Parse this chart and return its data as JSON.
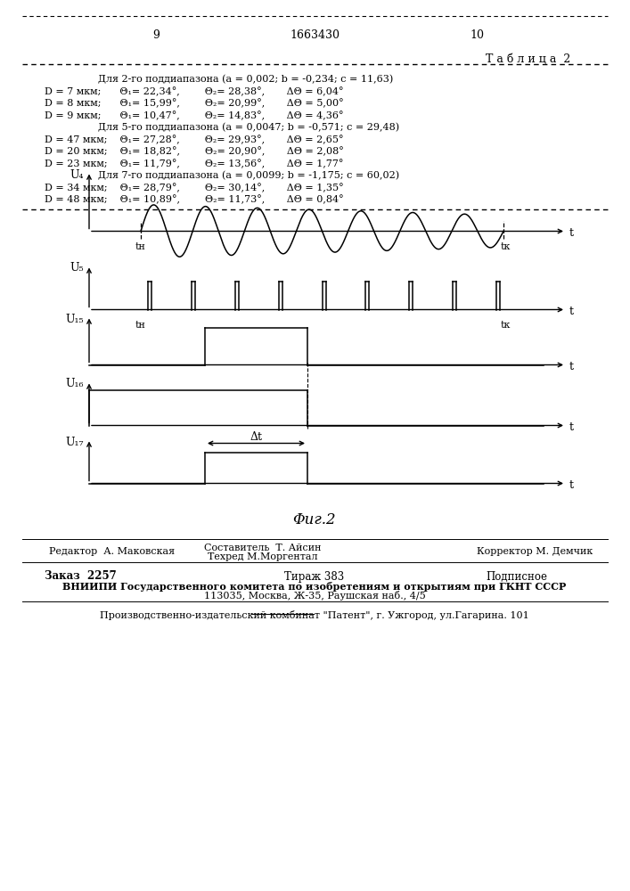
{
  "bg_color": "#ffffff",
  "text_color": "#000000",
  "page_num_left": "9",
  "page_center": "1663430",
  "page_num_right": "10",
  "table_title": "Т а б л и ц а  2",
  "table_lines": [
    "     Для 2-го поддиапазона (a = 0,002; b = -0,234; c = 11,63)",
    "D = 7 мкм;      Θ₁= 22,34°,        Θ₂= 28,38°,       ΔΘ = 6,04°",
    "D = 8 мкм;      Θ₁= 15,99°,        Θ₂= 20,99°,       ΔΘ = 5,00°",
    "D = 9 мкм;      Θ₁= 10,47°,        Θ₂= 14,83°,       ΔΘ = 4,36°",
    "     Для 5-го поддиапазона (a = 0,0047; b = -0,571; c = 29,48)",
    "D = 47 мкм;    Θ₁= 27,28°,        Θ₂= 29,93°,       ΔΘ = 2,65°",
    "D = 20 мкм;    Θ₁= 18,82°,        Θ₂= 20,90°,       ΔΘ = 2,08°",
    "D = 23 мкм;    Θ₁= 11,79°,        Θ₂= 13,56°,       ΔΘ = 1,77°",
    "     Для 7-го поддиапазона (a = 0,0099; b = -1,175; c = 60,02)",
    "D = 34 мкм;    Θ₁= 28,79°,        Θ₂= 30,14°,       ΔΘ = 1,35°",
    "D = 48 мкм;    Θ₁= 10,89°,        Θ₂= 11,73°,       ΔΘ = 0,84°"
  ],
  "fig_caption": "Φиг.2",
  "footer_editor": "Редактор  А. Маковская",
  "footer_composer": "Составитель  Т. Айсин",
  "footer_techred": "Техред М.Моргентал",
  "footer_corrector": "Корректор М. Демчик",
  "footer_order": "Заказ  2257",
  "footer_tirazh": "Тираж 383",
  "footer_podpisnoe": "Подписное",
  "footer_vniipи": "ВНИИПИ Государственного комитета по изобретениям и открытиям при ГКНТ СССР",
  "footer_address": "113035, Москва, Ж-35, Раушская наб., 4/5",
  "footer_patent": "Производственно-издательский комбинат \"Патент\", г. Ужгород, ул.Гагарина. 101"
}
